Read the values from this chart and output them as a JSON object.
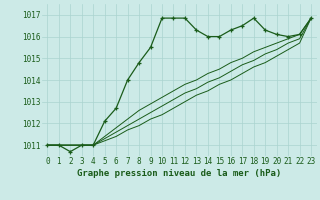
{
  "title": "Graphe pression niveau de la mer (hPa)",
  "x_labels": [
    "0",
    "1",
    "2",
    "3",
    "4",
    "5",
    "6",
    "7",
    "8",
    "9",
    "10",
    "11",
    "12",
    "13",
    "14",
    "15",
    "16",
    "17",
    "18",
    "19",
    "20",
    "21",
    "22",
    "23"
  ],
  "x_values": [
    0,
    1,
    2,
    3,
    4,
    5,
    6,
    7,
    8,
    9,
    10,
    11,
    12,
    13,
    14,
    15,
    16,
    17,
    18,
    19,
    20,
    21,
    22,
    23
  ],
  "ylim": [
    1010.5,
    1017.5
  ],
  "yticks": [
    1011,
    1012,
    1013,
    1014,
    1015,
    1016,
    1017
  ],
  "background_color": "#cceae7",
  "grid_color": "#aad4d0",
  "line_color": "#1a5c1a",
  "line1": [
    1011.0,
    1011.0,
    1010.7,
    1011.0,
    1011.0,
    1012.1,
    1012.7,
    1014.0,
    1014.8,
    1015.5,
    1016.85,
    1016.85,
    1016.85,
    1016.3,
    1016.0,
    1016.0,
    1016.3,
    1016.5,
    1016.85,
    1016.3,
    1016.1,
    1016.0,
    1016.1,
    1016.85
  ],
  "line2": [
    1011.0,
    1011.0,
    1011.0,
    1011.0,
    1011.0,
    1011.4,
    1011.8,
    1012.2,
    1012.6,
    1012.9,
    1013.2,
    1013.5,
    1013.8,
    1014.0,
    1014.3,
    1014.5,
    1014.8,
    1015.0,
    1015.3,
    1015.5,
    1015.7,
    1015.9,
    1016.1,
    1016.85
  ],
  "line3": [
    1011.0,
    1011.0,
    1011.0,
    1011.0,
    1011.0,
    1011.3,
    1011.6,
    1011.9,
    1012.2,
    1012.5,
    1012.8,
    1013.1,
    1013.4,
    1013.6,
    1013.9,
    1014.1,
    1014.4,
    1014.7,
    1014.9,
    1015.2,
    1015.4,
    1015.7,
    1015.9,
    1016.85
  ],
  "line4": [
    1011.0,
    1011.0,
    1011.0,
    1011.0,
    1011.0,
    1011.2,
    1011.4,
    1011.7,
    1011.9,
    1012.2,
    1012.4,
    1012.7,
    1013.0,
    1013.3,
    1013.5,
    1013.8,
    1014.0,
    1014.3,
    1014.6,
    1014.8,
    1015.1,
    1015.4,
    1015.7,
    1016.85
  ],
  "tick_fontsize": 5.5,
  "title_fontsize": 6.5
}
